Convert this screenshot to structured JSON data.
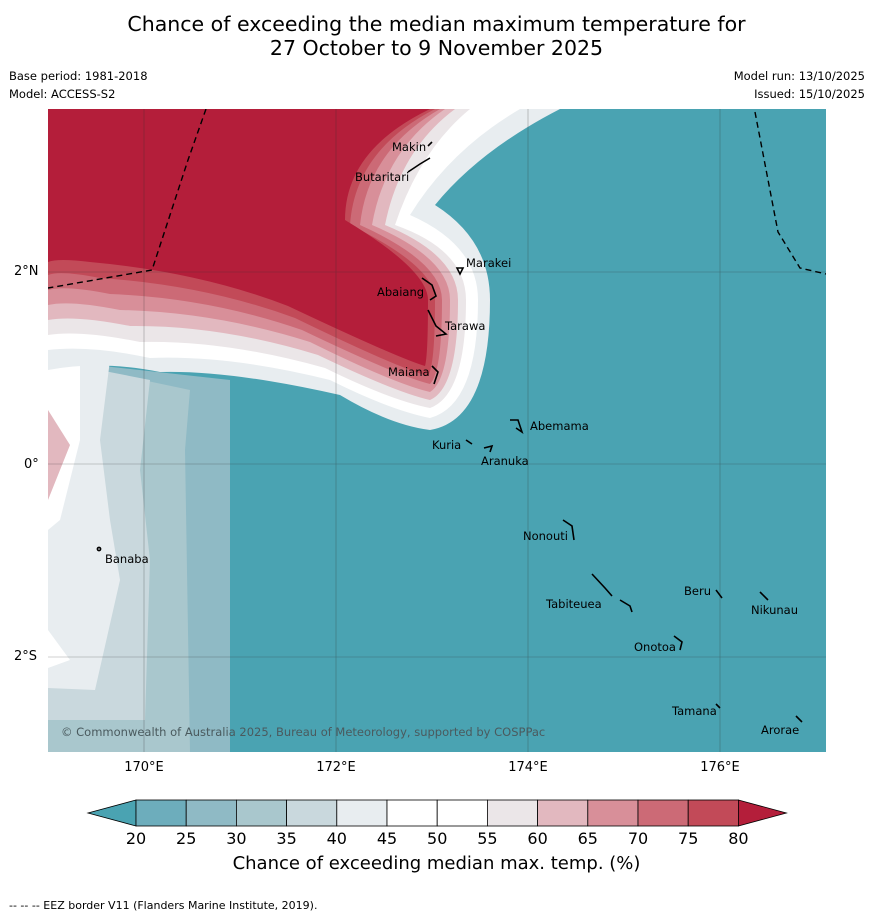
{
  "title": {
    "line1": "Chance of exceeding the median maximum temperature for",
    "line2": "27 October to 9 November 2025"
  },
  "meta": {
    "base_period": "Base period: 1981-2018",
    "model": "Model: ACCESS-S2",
    "model_run": "Model run: 13/10/2025",
    "issued": "Issued: 15/10/2025"
  },
  "map": {
    "lat_labels": [
      "2°N",
      "0°",
      "2°S"
    ],
    "lon_labels": [
      "170°E",
      "172°E",
      "174°E",
      "176°E"
    ],
    "copyright": "© Commonwealth of Australia 2025, Bureau of Meteorology, supported by COSPPac",
    "places": [
      {
        "name": "Makin"
      },
      {
        "name": "Butaritari"
      },
      {
        "name": "Marakei"
      },
      {
        "name": "Abaiang"
      },
      {
        "name": "Tarawa"
      },
      {
        "name": "Maiana"
      },
      {
        "name": "Abemama"
      },
      {
        "name": "Kuria"
      },
      {
        "name": "Aranuka"
      },
      {
        "name": "Nonouti"
      },
      {
        "name": "Banaba"
      },
      {
        "name": "Beru"
      },
      {
        "name": "Tabiteuea"
      },
      {
        "name": "Nikunau"
      },
      {
        "name": "Onotoa"
      },
      {
        "name": "Tamana"
      },
      {
        "name": "Arorae"
      }
    ]
  },
  "colorbar": {
    "ticks": [
      "20",
      "25",
      "30",
      "35",
      "40",
      "45",
      "50",
      "55",
      "60",
      "65",
      "70",
      "75",
      "80"
    ],
    "colors": [
      "#4aa3b2",
      "#6dadbc",
      "#8fbac5",
      "#a9c7cd",
      "#c9d8dd",
      "#e8edf0",
      "#ffffff",
      "#ffffff",
      "#ebe6e8",
      "#e2b8bf",
      "#d88f99",
      "#cc6a76",
      "#c24a58",
      "#b41e3a"
    ],
    "label": "Chance of exceeding median max. temp. (%)"
  },
  "footnote": "-- -- -- EEZ border V11 (Flanders Marine Institute, 2019)."
}
